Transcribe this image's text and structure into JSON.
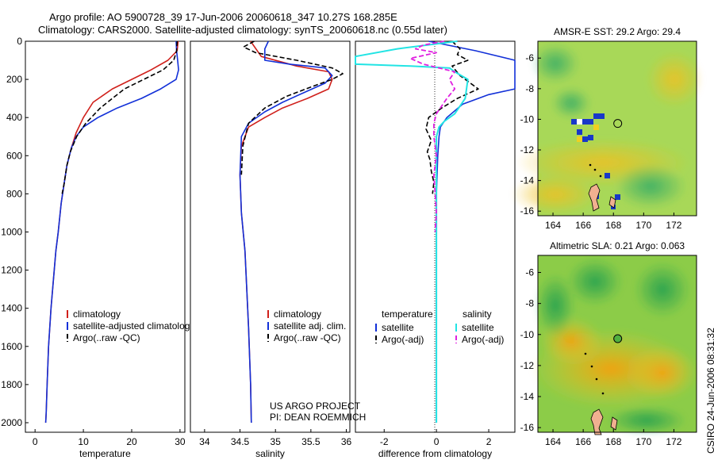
{
  "header": {
    "line1": "Argo profile: AO 5900728_39 17-Jun-2006 20060618_347 10.27S 168.285E",
    "line2": "Climatology: CARS2000. Satellite-adjusted climatology: synTS_20060618.nc (0.55d later)"
  },
  "footer": {
    "project": "US ARGO PROJECT",
    "pi": "PI: DEAN ROEMMICH",
    "stamp": "CSIRO 24-Jun-2006 08:31:32"
  },
  "colors": {
    "clim": "#d0201b",
    "sat": "#1230d8",
    "argo": "#000000",
    "satsal": "#22e4e4",
    "argosal": "#e020e0"
  },
  "chart_data": [
    {
      "id": "temperature",
      "type": "line",
      "xlabel": "temperature",
      "ylabel": "",
      "xlim": [
        -2,
        31
      ],
      "ylim": [
        0,
        2050
      ],
      "y_reversed": true,
      "xticks": [
        0,
        10,
        20,
        30
      ],
      "yticks": [
        0,
        200,
        400,
        600,
        800,
        1000,
        1200,
        1400,
        1600,
        1800,
        2000
      ],
      "legend": [
        "climatology",
        "satellite-adjusted climatology",
        "Argo(..raw -QC)"
      ],
      "series": [
        {
          "name": "climatology",
          "style": "clim",
          "x": [
            29.6,
            29.4,
            27.5,
            24,
            20,
            16,
            12,
            10,
            8.5,
            7.5,
            6.6,
            6,
            5.4,
            4.8,
            4.3,
            3.3,
            2.8,
            2.5,
            2.3,
            2.2
          ],
          "y": [
            0,
            50,
            100,
            150,
            200,
            250,
            320,
            400,
            480,
            560,
            650,
            750,
            850,
            1000,
            1100,
            1400,
            1600,
            1800,
            1950,
            2000
          ]
        },
        {
          "name": "satellite-adjusted climatology",
          "style": "sat",
          "x": [
            29.2,
            29.3,
            29.5,
            29.7,
            29.2,
            26,
            22,
            17,
            13,
            10,
            8.5,
            7.5,
            6.6,
            6,
            5.4,
            4.8,
            4.3,
            3.3,
            2.8,
            2.5,
            2.3,
            2.2
          ],
          "y": [
            0,
            50,
            100,
            150,
            200,
            250,
            300,
            350,
            400,
            450,
            500,
            560,
            650,
            750,
            850,
            1000,
            1100,
            1400,
            1600,
            1800,
            1950,
            2000
          ]
        },
        {
          "name": "Argo(..raw -QC)",
          "style": "argo",
          "x": [
            29.4,
            29.3,
            28.7,
            26.5,
            22.5,
            18.5,
            16,
            13.5,
            10.5,
            8.6,
            7.3,
            6.6,
            6,
            5.6
          ],
          "y": [
            0,
            50,
            100,
            150,
            200,
            250,
            300,
            350,
            430,
            500,
            580,
            650,
            750,
            800
          ]
        }
      ]
    },
    {
      "id": "salinity",
      "type": "line",
      "xlabel": "salinity",
      "ylabel": "",
      "xlim": [
        33.8,
        36.05
      ],
      "ylim": [
        0,
        2050
      ],
      "y_reversed": true,
      "xticks": [
        34,
        34.5,
        35,
        35.5,
        36
      ],
      "legend": [
        "climatology",
        "satellite adj. clim.",
        "Argo(..raw -QC)"
      ],
      "series": [
        {
          "name": "climatology",
          "style": "clim",
          "x": [
            34.65,
            34.8,
            35.3,
            35.75,
            35.8,
            35.75,
            35.45,
            35.1,
            34.85,
            34.62,
            34.52,
            34.5,
            34.52,
            34.57,
            34.62,
            34.65,
            34.66
          ],
          "y": [
            0,
            80,
            130,
            160,
            200,
            250,
            300,
            350,
            400,
            450,
            550,
            700,
            900,
            1100,
            1500,
            1800,
            2000
          ]
        },
        {
          "name": "satellite adj. clim.",
          "style": "sat",
          "x": [
            34.9,
            34.85,
            34.85,
            35.2,
            35.7,
            35.8,
            35.7,
            35.4,
            35.1,
            34.85,
            34.62,
            34.52,
            34.5,
            34.52,
            34.57,
            34.62,
            34.65,
            34.66
          ],
          "y": [
            0,
            40,
            100,
            120,
            140,
            180,
            220,
            270,
            320,
            370,
            430,
            500,
            700,
            900,
            1100,
            1500,
            1800,
            2000
          ]
        },
        {
          "name": "Argo(..raw -QC)",
          "style": "argo",
          "x": [
            34.7,
            34.55,
            34.72,
            35.3,
            35.8,
            35.95,
            35.8,
            35.5,
            35.15,
            34.85,
            34.62,
            34.54,
            34.52
          ],
          "y": [
            0,
            30,
            60,
            100,
            140,
            170,
            200,
            240,
            290,
            350,
            430,
            550,
            700
          ]
        }
      ]
    },
    {
      "id": "difference",
      "type": "line",
      "xlabel": "difference from climatology",
      "ylabel": "",
      "xlim": [
        -3.1,
        3.0
      ],
      "ylim": [
        0,
        2050
      ],
      "y_reversed": true,
      "xticks": [
        -2,
        0,
        2
      ],
      "legend_groups": [
        "temperature",
        "salinity"
      ],
      "legend": [
        "satellite",
        "Argo(-adj)",
        "satellite",
        "Argo(-adj)"
      ],
      "series": [
        {
          "name": "temperature satellite",
          "style": "sat",
          "x": [
            -0.3,
            1.5,
            3.0,
            3.0,
            2.0,
            1.0,
            0.4,
            0.15,
            0.1,
            0.05,
            0,
            0
          ],
          "y": [
            0,
            50,
            100,
            250,
            280,
            330,
            400,
            450,
            500,
            600,
            800,
            2000
          ]
        },
        {
          "name": "temperature Argo(-adj)",
          "style": "argo",
          "x": [
            0.6,
            0.9,
            0.8,
            1.2,
            0.6,
            0.9,
            1.6,
            0.8,
            0.2,
            -0.3,
            -0.4,
            -0.2,
            -0.35,
            -0.25,
            -0.2,
            -0.1,
            -0.15
          ],
          "y": [
            0,
            40,
            70,
            100,
            130,
            180,
            250,
            300,
            350,
            400,
            460,
            520,
            580,
            620,
            680,
            740,
            800
          ]
        },
        {
          "name": "salinity satellite",
          "style": "satsal",
          "x": [
            0.8,
            -1.5,
            -3.1,
            -3.1,
            -1.0,
            0.5,
            0.7,
            1.2,
            1.1,
            0.7,
            0.3,
            0.1,
            0,
            0,
            0,
            0
          ],
          "y": [
            0,
            40,
            80,
            120,
            130,
            140,
            160,
            200,
            300,
            380,
            420,
            450,
            500,
            700,
            1100,
            2000
          ]
        },
        {
          "name": "salinity Argo(-adj)",
          "style": "argosal",
          "x": [
            0.3,
            -0.5,
            -0.8,
            0,
            -1.0,
            -0.5,
            0.7,
            0.5,
            0.7,
            0.4,
            0.2,
            0,
            -0.1,
            -0.1,
            0,
            -0.1,
            -0.05,
            0,
            -0.05
          ],
          "y": [
            0,
            20,
            40,
            60,
            90,
            120,
            160,
            200,
            250,
            300,
            340,
            380,
            430,
            500,
            600,
            700,
            800,
            900,
            1000
          ]
        }
      ]
    },
    {
      "id": "sst_map",
      "type": "heatmap",
      "title": "AMSR-E SST: 29.2 Argo: 29.4",
      "xlim": [
        163,
        173.5
      ],
      "ylim": [
        -16.3,
        -4.9
      ],
      "xticks": [
        164,
        166,
        168,
        170,
        172
      ],
      "yticks": [
        -6,
        -8,
        -10,
        -12,
        -14,
        -16
      ],
      "marker": {
        "lon": 168.285,
        "lat": -10.27
      }
    },
    {
      "id": "sla_map",
      "type": "heatmap",
      "title": "Altimetric SLA: 0.21 Argo: 0.063",
      "xlim": [
        163,
        173.5
      ],
      "ylim": [
        -16.3,
        -4.9
      ],
      "xticks": [
        164,
        166,
        168,
        170,
        172
      ],
      "yticks": [
        -6,
        -8,
        -10,
        -12,
        -14,
        -16
      ],
      "marker": {
        "lon": 168.285,
        "lat": -10.27
      }
    }
  ]
}
